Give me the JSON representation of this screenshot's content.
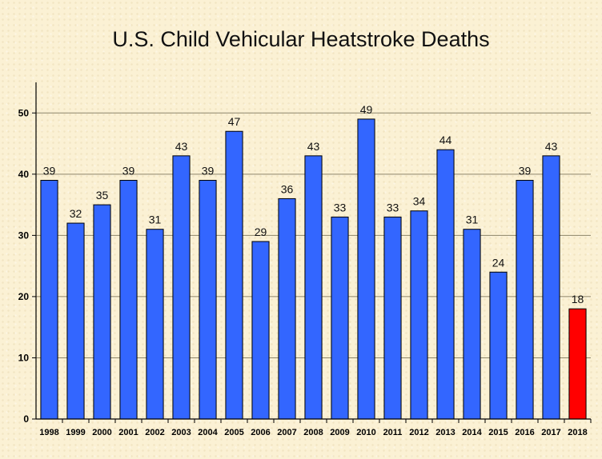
{
  "chart_data": {
    "type": "bar",
    "title": "U.S. Child Vehicular Heatstroke Deaths",
    "categories": [
      "1998",
      "1999",
      "2000",
      "2001",
      "2002",
      "2003",
      "2004",
      "2005",
      "2006",
      "2007",
      "2008",
      "2009",
      "2010",
      "2011",
      "2012",
      "2013",
      "2014",
      "2015",
      "2016",
      "2017",
      "2018"
    ],
    "values": [
      39,
      32,
      35,
      39,
      31,
      43,
      39,
      47,
      29,
      36,
      43,
      33,
      49,
      33,
      34,
      44,
      31,
      24,
      39,
      43,
      18
    ],
    "ylim": [
      0,
      55
    ],
    "yticks": [
      0,
      10,
      20,
      30,
      40,
      50
    ],
    "grid": "horizontal",
    "colors": {
      "bar": "#3366ff",
      "highlight_bar": "#ff0000",
      "grid": "#8c8468",
      "axis": "#000000"
    },
    "highlight_category": "2018"
  }
}
